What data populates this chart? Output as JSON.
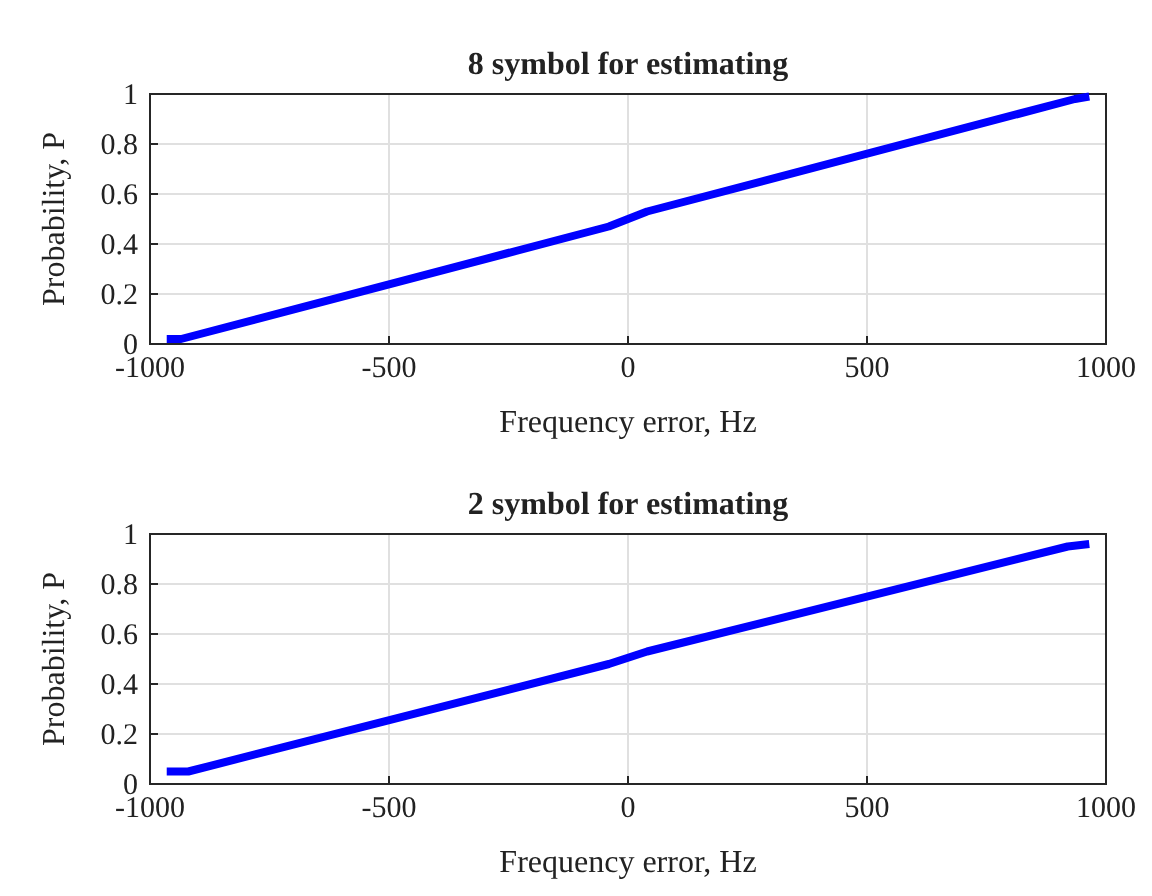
{
  "chart_data": [
    {
      "type": "line",
      "title": "8 symbol for estimating",
      "xlabel": "Frequency error, Hz",
      "ylabel": "Probability, P",
      "x": [
        -965,
        -935,
        -40,
        40,
        935,
        965
      ],
      "series": [
        {
          "color": "#0000ff",
          "values": [
            0.02,
            0.02,
            0.47,
            0.53,
            0.98,
            0.99
          ]
        }
      ],
      "xlim": [
        -1000,
        1000
      ],
      "xticks": [
        -1000,
        -500,
        0,
        500,
        1000
      ],
      "ylim": [
        0,
        1
      ],
      "yticks": [
        0,
        0.2,
        0.4,
        0.6,
        0.8,
        1
      ],
      "grid": true
    },
    {
      "type": "line",
      "title": "2 symbol for estimating",
      "xlabel": "Frequency error, Hz",
      "ylabel": "Probability, P",
      "x": [
        -965,
        -920,
        -40,
        40,
        920,
        965
      ],
      "series": [
        {
          "color": "#0000ff",
          "values": [
            0.05,
            0.05,
            0.48,
            0.53,
            0.95,
            0.96
          ]
        }
      ],
      "xlim": [
        -1000,
        1000
      ],
      "xticks": [
        -1000,
        -500,
        0,
        500,
        1000
      ],
      "ylim": [
        0,
        1
      ],
      "yticks": [
        0,
        0.2,
        0.4,
        0.6,
        0.8,
        1
      ],
      "grid": true
    }
  ]
}
